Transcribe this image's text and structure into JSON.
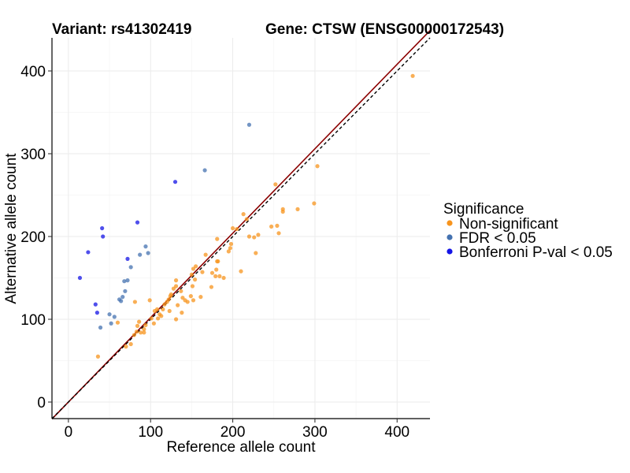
{
  "chart_data": {
    "type": "scatter",
    "title_left": "Variant: rs41302419",
    "title_right": "Gene: CTSW (ENSG00000172543)",
    "xlabel": "Reference allele count",
    "ylabel": "Alternative allele count",
    "xlim": [
      -20,
      440
    ],
    "ylim": [
      -20,
      440
    ],
    "xticks": [
      0,
      100,
      200,
      300,
      400
    ],
    "yticks": [
      0,
      100,
      200,
      300,
      400
    ],
    "reference_line": {
      "type": "y=x",
      "style": "dashed",
      "color": "#000000"
    },
    "fit_line": {
      "slope": 1.02,
      "intercept": 0,
      "color": "#8b0000"
    },
    "legend": {
      "title": "Significance",
      "position": "right"
    },
    "series": [
      {
        "name": "Non-significant",
        "color": "#f7941d",
        "points": [
          [
            419,
            394
          ],
          [
            303,
            285
          ],
          [
            299,
            240
          ],
          [
            279,
            233
          ],
          [
            261,
            233
          ],
          [
            261,
            230
          ],
          [
            252,
            263
          ],
          [
            254,
            213
          ],
          [
            247,
            212
          ],
          [
            256,
            204
          ],
          [
            231,
            202
          ],
          [
            226,
            199
          ],
          [
            217,
            221
          ],
          [
            213,
            227
          ],
          [
            210,
            158
          ],
          [
            205,
            209
          ],
          [
            200,
            210
          ],
          [
            198,
            191
          ],
          [
            197,
            186
          ],
          [
            195,
            182
          ],
          [
            189,
            150
          ],
          [
            184,
            152
          ],
          [
            181,
            197
          ],
          [
            181,
            170
          ],
          [
            180,
            160
          ],
          [
            179,
            152
          ],
          [
            182,
            170
          ],
          [
            175,
            156
          ],
          [
            167,
            178
          ],
          [
            163,
            157
          ],
          [
            155,
            164
          ],
          [
            152,
            161
          ],
          [
            154,
            148
          ],
          [
            150,
            154
          ],
          [
            151,
            140
          ],
          [
            149,
            128
          ],
          [
            152,
            123
          ],
          [
            145,
            121
          ],
          [
            142,
            123
          ],
          [
            139,
            126
          ],
          [
            137,
            134
          ],
          [
            133,
            117
          ],
          [
            131,
            147
          ],
          [
            131,
            140
          ],
          [
            128,
            137
          ],
          [
            125,
            130
          ],
          [
            124,
            128
          ],
          [
            122,
            124
          ],
          [
            120,
            121
          ],
          [
            117,
            118
          ],
          [
            115,
            112
          ],
          [
            113,
            104
          ],
          [
            111,
            106
          ],
          [
            109,
            101
          ],
          [
            108,
            112
          ],
          [
            104,
            95
          ],
          [
            101,
            101
          ],
          [
            99,
            123
          ],
          [
            94,
            93
          ],
          [
            92,
            88
          ],
          [
            92,
            84
          ],
          [
            88,
            84
          ],
          [
            86,
            97
          ],
          [
            84,
            92
          ],
          [
            83,
            85
          ],
          [
            80,
            81
          ],
          [
            76,
            70
          ],
          [
            70,
            67
          ],
          [
            81,
            121
          ],
          [
            60,
            96
          ],
          [
            123,
            110
          ],
          [
            138,
            108
          ],
          [
            131,
            100
          ],
          [
            161,
            127
          ],
          [
            174,
            139
          ],
          [
            220,
            200
          ],
          [
            228,
            180
          ],
          [
            36,
            55
          ],
          [
            105,
            110
          ]
        ]
      },
      {
        "name": "FDR < 0.05",
        "color": "#4472b0",
        "points": [
          [
            220,
            335
          ],
          [
            166,
            280
          ],
          [
            97,
            180
          ],
          [
            94,
            188
          ],
          [
            87,
            178
          ],
          [
            76,
            163
          ],
          [
            72,
            147
          ],
          [
            68,
            146
          ],
          [
            69,
            134
          ],
          [
            64,
            122
          ],
          [
            62,
            124
          ],
          [
            56,
            103
          ],
          [
            52,
            95
          ],
          [
            50,
            106
          ],
          [
            39,
            90
          ],
          [
            66,
            127
          ]
        ]
      },
      {
        "name": "Bonferroni P-val < 0.05",
        "color": "#1414e6",
        "points": [
          [
            130,
            266
          ],
          [
            84,
            217
          ],
          [
            41,
            210
          ],
          [
            42,
            200
          ],
          [
            72,
            173
          ],
          [
            24,
            181
          ],
          [
            14,
            150
          ],
          [
            33,
            118
          ],
          [
            35,
            108
          ]
        ]
      }
    ]
  }
}
